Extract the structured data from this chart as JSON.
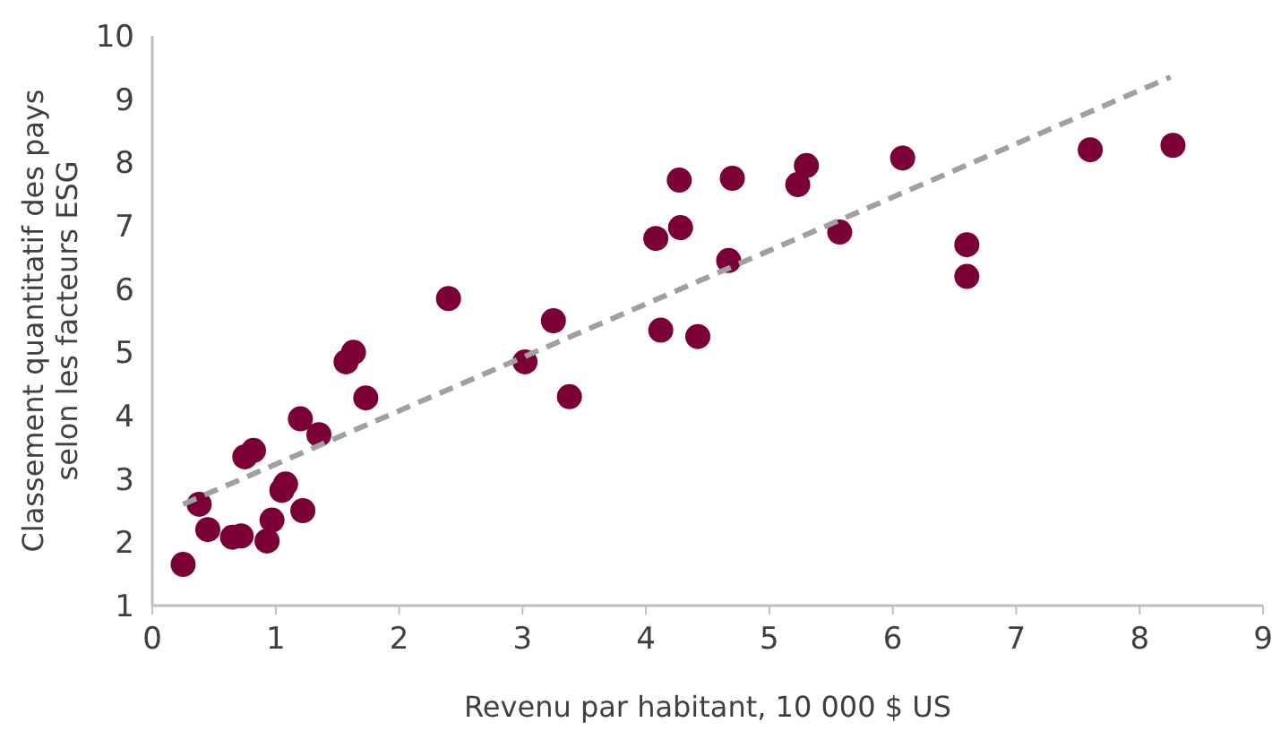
{
  "chart_data": {
    "type": "scatter",
    "xlabel": "Revenu par habitant, 10 000 $ US",
    "ylabel": "Classement quantitatif des pays selon les facteurs ESG",
    "xlim": [
      0,
      9
    ],
    "ylim": [
      1,
      10
    ],
    "xticks": [
      0,
      1,
      2,
      3,
      4,
      5,
      6,
      7,
      8,
      9
    ],
    "yticks": [
      1,
      2,
      3,
      4,
      5,
      6,
      7,
      8,
      9,
      10
    ],
    "grid": false,
    "series": [
      {
        "color": "#7a0036",
        "marker": "circle",
        "x": [
          0.25,
          0.38,
          0.45,
          0.65,
          0.72,
          0.75,
          0.82,
          0.93,
          0.97,
          1.05,
          1.08,
          1.2,
          1.22,
          1.35,
          1.57,
          1.63,
          1.73,
          2.4,
          3.02,
          3.25,
          3.38,
          4.08,
          4.12,
          4.27,
          4.28,
          4.42,
          4.67,
          4.7,
          5.23,
          5.3,
          5.57,
          6.08,
          6.6,
          6.6,
          7.6,
          8.27
        ],
        "values": [
          1.65,
          2.6,
          2.2,
          2.08,
          2.1,
          3.35,
          3.45,
          2.02,
          2.35,
          2.82,
          2.92,
          3.95,
          2.5,
          3.7,
          4.85,
          5.0,
          4.28,
          5.85,
          4.85,
          5.5,
          4.3,
          6.8,
          5.35,
          7.72,
          6.97,
          5.25,
          6.45,
          7.75,
          7.65,
          7.95,
          6.9,
          8.07,
          6.7,
          6.2,
          8.2,
          8.27
        ]
      },
      {
        "type": "line",
        "color": "#a0a0a0",
        "line_style": "dashed",
        "x": [
          0.25,
          8.25
        ],
        "values": [
          2.6,
          9.35
        ]
      }
    ]
  }
}
